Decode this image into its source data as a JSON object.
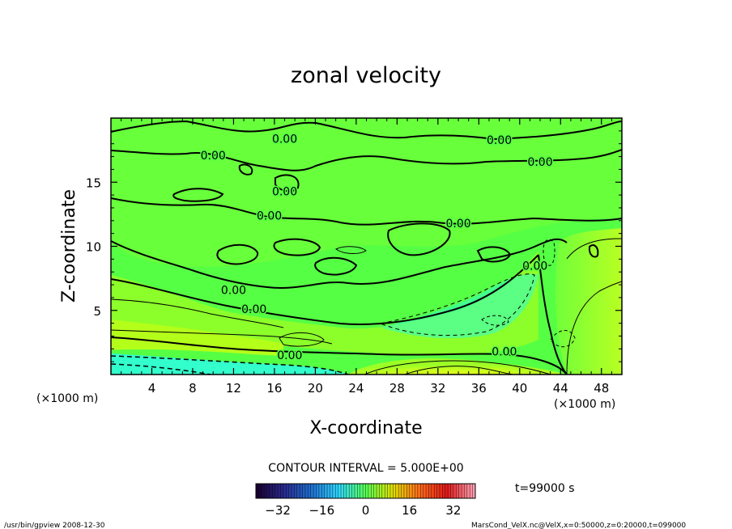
{
  "chart_data": {
    "type": "heatmap",
    "title": "zonal velocity",
    "xlabel": "X-coordinate",
    "ylabel": "Z-coordinate",
    "x_unit_label": "(×1000 m)",
    "y_unit_label": "(×1000 m)",
    "xlim": [
      0,
      50
    ],
    "ylim": [
      0,
      20
    ],
    "xticks": [
      4,
      8,
      12,
      16,
      20,
      24,
      28,
      32,
      36,
      40,
      44,
      48
    ],
    "yticks": [
      5,
      10,
      15
    ],
    "contour_interval_text": "CONTOUR INTERVAL = 5.000E+00",
    "time_label": "t=99000 s",
    "colorbar": {
      "range": [
        -40,
        40
      ],
      "ticks": [
        -32,
        -16,
        0,
        16,
        32
      ],
      "colors": [
        "#1a0033",
        "#2a2a8f",
        "#1e6fd0",
        "#2fd6ff",
        "#55ff55",
        "#e0e000",
        "#ff6a1a",
        "#e01818",
        "#ff9fb0"
      ]
    },
    "field_colors": {
      "bottom_layer": "#33ffcc",
      "near_zero": "#55ff44",
      "weak_positive": "#8cff2a",
      "moderate_positive": "#b4ff1a",
      "jet_core": "#e6ff20"
    },
    "contour_labels": [
      {
        "x": 17,
        "y": 18.4,
        "text": "0.00"
      },
      {
        "x": 10,
        "y": 17.1,
        "text": "0.00"
      },
      {
        "x": 38,
        "y": 18.3,
        "text": "0.00"
      },
      {
        "x": 42,
        "y": 16.6,
        "text": "0.00"
      },
      {
        "x": 17,
        "y": 14.3,
        "text": "0.00"
      },
      {
        "x": 15.5,
        "y": 12.4,
        "text": "0.00"
      },
      {
        "x": 34,
        "y": 11.8,
        "text": "0.00"
      },
      {
        "x": 41.5,
        "y": 8.5,
        "text": "0.00"
      },
      {
        "x": 12,
        "y": 6.6,
        "text": "0.00"
      },
      {
        "x": 14,
        "y": 5.1,
        "text": "0.00"
      },
      {
        "x": 17.5,
        "y": 1.5,
        "text": "0.00"
      },
      {
        "x": 38.5,
        "y": 1.8,
        "text": "0.00"
      }
    ]
  },
  "footer": {
    "left": "/usr/bin/gpview   2008-12-30",
    "right": "MarsCond_VelX.nc@VelX,x=0:50000,z=0:20000,t=099000"
  }
}
